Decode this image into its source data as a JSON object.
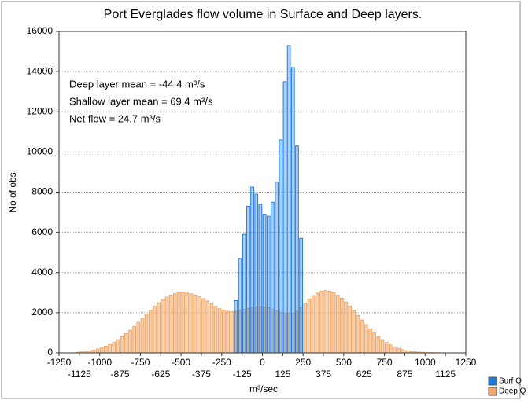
{
  "chart_data": {
    "type": "histogram",
    "title": "Port Everglades flow volume in Surface and Deep layers.",
    "x_label": "m³/sec",
    "y_label": "No of obs",
    "annotations": [
      "Deep layer mean = -44.4 m³/s",
      "Shallow layer mean = 69.4 m³/s",
      "Net flow = 24.7 m³/s"
    ],
    "xlim": [
      -1250,
      1250
    ],
    "xticks": [
      -1250,
      -1125,
      -1000,
      -875,
      -750,
      -625,
      -500,
      -375,
      -250,
      -125,
      0,
      125,
      250,
      375,
      500,
      625,
      750,
      875,
      1000,
      1125,
      1250
    ],
    "ylim": [
      0,
      16000
    ],
    "yticks": [
      0,
      2000,
      4000,
      6000,
      8000,
      10000,
      12000,
      14000,
      16000
    ],
    "grid": true,
    "legend": "bottom-right",
    "series": [
      {
        "name": "Deep Q",
        "color": "#f0a868",
        "bins": [
          -1150,
          -1125,
          -1100,
          -1075,
          -1050,
          -1025,
          -1000,
          -975,
          -950,
          -925,
          -900,
          -875,
          -850,
          -825,
          -800,
          -775,
          -750,
          -725,
          -700,
          -675,
          -650,
          -625,
          -600,
          -575,
          -550,
          -525,
          -500,
          -475,
          -450,
          -425,
          -400,
          -375,
          -350,
          -325,
          -300,
          -275,
          -250,
          -225,
          -200,
          -175,
          -150,
          -125,
          -100,
          -75,
          -50,
          -25,
          0,
          25,
          50,
          75,
          100,
          125,
          150,
          175,
          200,
          225,
          250,
          275,
          300,
          325,
          350,
          375,
          400,
          425,
          450,
          475,
          500,
          525,
          550,
          575,
          600,
          625,
          650,
          675,
          700,
          725,
          750,
          775,
          800,
          825,
          850,
          875,
          900,
          925,
          950,
          975,
          1000,
          1025,
          1050,
          1075,
          1100
        ],
        "values": [
          30,
          50,
          70,
          100,
          140,
          190,
          250,
          330,
          420,
          530,
          660,
          800,
          960,
          1130,
          1320,
          1520,
          1720,
          1920,
          2120,
          2320,
          2500,
          2650,
          2780,
          2880,
          2950,
          2990,
          3000,
          2980,
          2940,
          2880,
          2800,
          2700,
          2580,
          2450,
          2320,
          2200,
          2120,
          2070,
          2050,
          2080,
          2120,
          2170,
          2220,
          2270,
          2300,
          2310,
          2290,
          2250,
          2180,
          2100,
          2030,
          1980,
          1960,
          1990,
          2080,
          2250,
          2470,
          2680,
          2850,
          2980,
          3070,
          3100,
          3070,
          2990,
          2870,
          2720,
          2540,
          2330,
          2100,
          1870,
          1640,
          1410,
          1200,
          1000,
          820,
          660,
          520,
          400,
          300,
          220,
          160,
          110,
          80,
          55,
          40,
          30,
          20,
          15,
          10,
          5
        ]
      },
      {
        "name": "Surf Q",
        "color": "#1e7be0",
        "bins": [
          -175,
          -150,
          -125,
          -100,
          -75,
          -50,
          -25,
          0,
          25,
          50,
          75,
          100,
          125,
          150,
          175,
          200,
          225,
          250
        ],
        "values": [
          2600,
          4700,
          5900,
          7300,
          8250,
          7900,
          7400,
          6900,
          6800,
          7500,
          8500,
          10600,
          13500,
          15300,
          14200,
          10300,
          5700
        ]
      }
    ]
  }
}
